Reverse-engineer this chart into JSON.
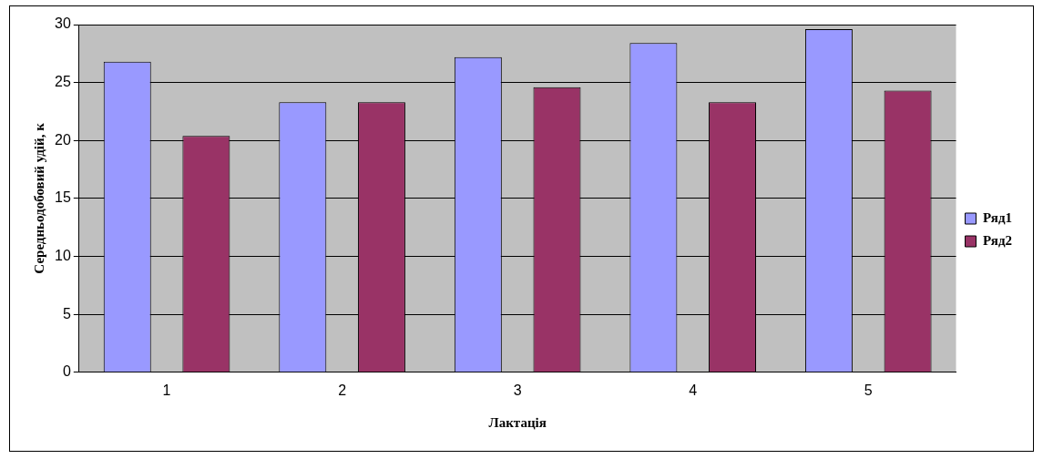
{
  "chart_data": {
    "type": "bar",
    "xlabel": "Лактація",
    "ylabel": "Середньодобовий удій, к",
    "categories": [
      "1",
      "2",
      "3",
      "4",
      "5"
    ],
    "series": [
      {
        "name": "Ряд1",
        "color": "#9999ff",
        "values": [
          26.8,
          23.3,
          27.2,
          28.4,
          29.6
        ]
      },
      {
        "name": "Ряд2",
        "color": "#993366",
        "values": [
          20.4,
          23.3,
          24.6,
          23.3,
          24.3
        ]
      }
    ],
    "ylim": [
      0,
      30
    ],
    "yticks": [
      0,
      5,
      10,
      15,
      20,
      25,
      30
    ],
    "grid": "y",
    "legend": "right"
  }
}
